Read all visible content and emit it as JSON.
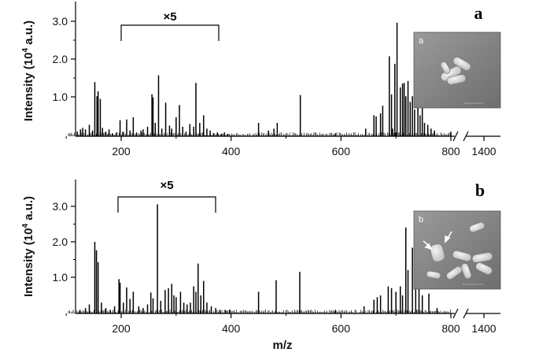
{
  "chart_data": [
    {
      "type": "line",
      "panel": "a",
      "xlabel": "m/z",
      "ylabel": "Intensity (10^4 a.u.)",
      "ylim": [
        0,
        3.5
      ],
      "y_ticks": [
        "1.0",
        "2.0",
        "3.0"
      ],
      "x_ticks": [
        "200",
        "400",
        "600",
        "800",
        "1400"
      ],
      "broken_axis": true,
      "annotation": {
        "text": "×5",
        "x_range": [
          200,
          400
        ]
      },
      "inset_letter": "a",
      "series": [
        {
          "x": [
            120,
            126,
            130,
            135,
            142,
            148,
            152,
            156,
            158,
            162,
            166,
            172,
            178,
            184,
            192,
            198,
            203,
            210,
            216,
            222,
            228,
            236,
            240,
            248,
            256,
            258,
            262,
            268,
            274,
            281,
            288,
            292,
            300,
            306,
            312,
            318,
            325,
            332,
            336,
            343,
            350,
            356,
            362,
            368,
            375,
            382,
            388,
            394,
            450,
            468,
            478,
            484,
            526,
            590,
            645,
            660,
            664,
            672,
            676,
            688,
            692,
            698,
            702,
            708,
            712,
            715,
            718,
            722,
            726,
            730,
            734,
            740,
            744,
            748,
            752,
            758,
            764,
            770,
            800,
            820,
            840
          ],
          "y": [
            0.12,
            0.18,
            0.22,
            0.18,
            0.3,
            0.15,
            1.42,
            1.05,
            1.18,
            0.98,
            0.22,
            0.12,
            0.18,
            0.08,
            0.1,
            0.42,
            0.12,
            0.44,
            0.15,
            0.5,
            0.1,
            0.15,
            0.18,
            0.25,
            1.1,
            1.02,
            0.35,
            1.6,
            0.2,
            0.88,
            0.28,
            0.2,
            0.5,
            0.82,
            0.25,
            0.12,
            0.32,
            0.25,
            1.4,
            0.35,
            0.55,
            0.2,
            0.15,
            0.08,
            0.1,
            0.06,
            0.1,
            0.06,
            0.35,
            0.15,
            0.2,
            0.35,
            1.08,
            0.08,
            0.2,
            0.55,
            0.52,
            0.6,
            0.8,
            2.1,
            1.1,
            1.9,
            2.98,
            1.28,
            1.38,
            1.4,
            1.05,
            1.45,
            0.9,
            1.05,
            0.7,
            1.5,
            0.55,
            0.85,
            0.35,
            0.3,
            0.2,
            0.15,
            0.12,
            0.2,
            0.1
          ]
        }
      ]
    },
    {
      "type": "line",
      "panel": "b",
      "xlabel": "m/z",
      "ylabel": "Intensity (10^4 a.u.)",
      "ylim": [
        0,
        3.5
      ],
      "y_ticks": [
        "1.0",
        "2.0",
        "3.0"
      ],
      "x_ticks": [
        "200",
        "400",
        "600",
        "800",
        "1400"
      ],
      "broken_axis": true,
      "annotation": {
        "text": "×5",
        "x_range": [
          190,
          400
        ]
      },
      "inset_letter": "b",
      "series": [
        {
          "x": [
            125,
            135,
            142,
            152,
            155,
            158,
            164,
            172,
            180,
            188,
            196,
            198,
            204,
            210,
            216,
            222,
            232,
            240,
            248,
            254,
            258,
            266,
            272,
            280,
            286,
            292,
            296,
            300,
            308,
            314,
            320,
            326,
            332,
            336,
            340,
            345,
            350,
            356,
            364,
            372,
            380,
            390,
            398,
            450,
            482,
            525,
            590,
            642,
            660,
            666,
            672,
            686,
            692,
            700,
            708,
            712,
            718,
            722,
            730,
            736,
            742,
            748,
            760,
            775
          ],
          "y": [
            0.1,
            0.15,
            0.25,
            1.98,
            1.75,
            1.42,
            0.3,
            0.15,
            0.1,
            0.2,
            0.95,
            0.85,
            0.3,
            0.72,
            0.4,
            0.6,
            0.2,
            0.15,
            0.25,
            0.58,
            0.42,
            3.02,
            0.35,
            0.65,
            0.7,
            0.82,
            0.5,
            0.45,
            0.6,
            0.3,
            0.25,
            0.3,
            0.75,
            0.6,
            1.38,
            0.5,
            0.9,
            0.3,
            0.2,
            0.15,
            0.1,
            0.08,
            0.1,
            0.6,
            0.92,
            1.15,
            0.1,
            0.2,
            0.38,
            0.45,
            0.5,
            0.75,
            0.7,
            0.6,
            0.75,
            0.5,
            2.38,
            1.2,
            1.82,
            0.7,
            0.95,
            0.5,
            0.55,
            0.15
          ]
        }
      ]
    }
  ]
}
